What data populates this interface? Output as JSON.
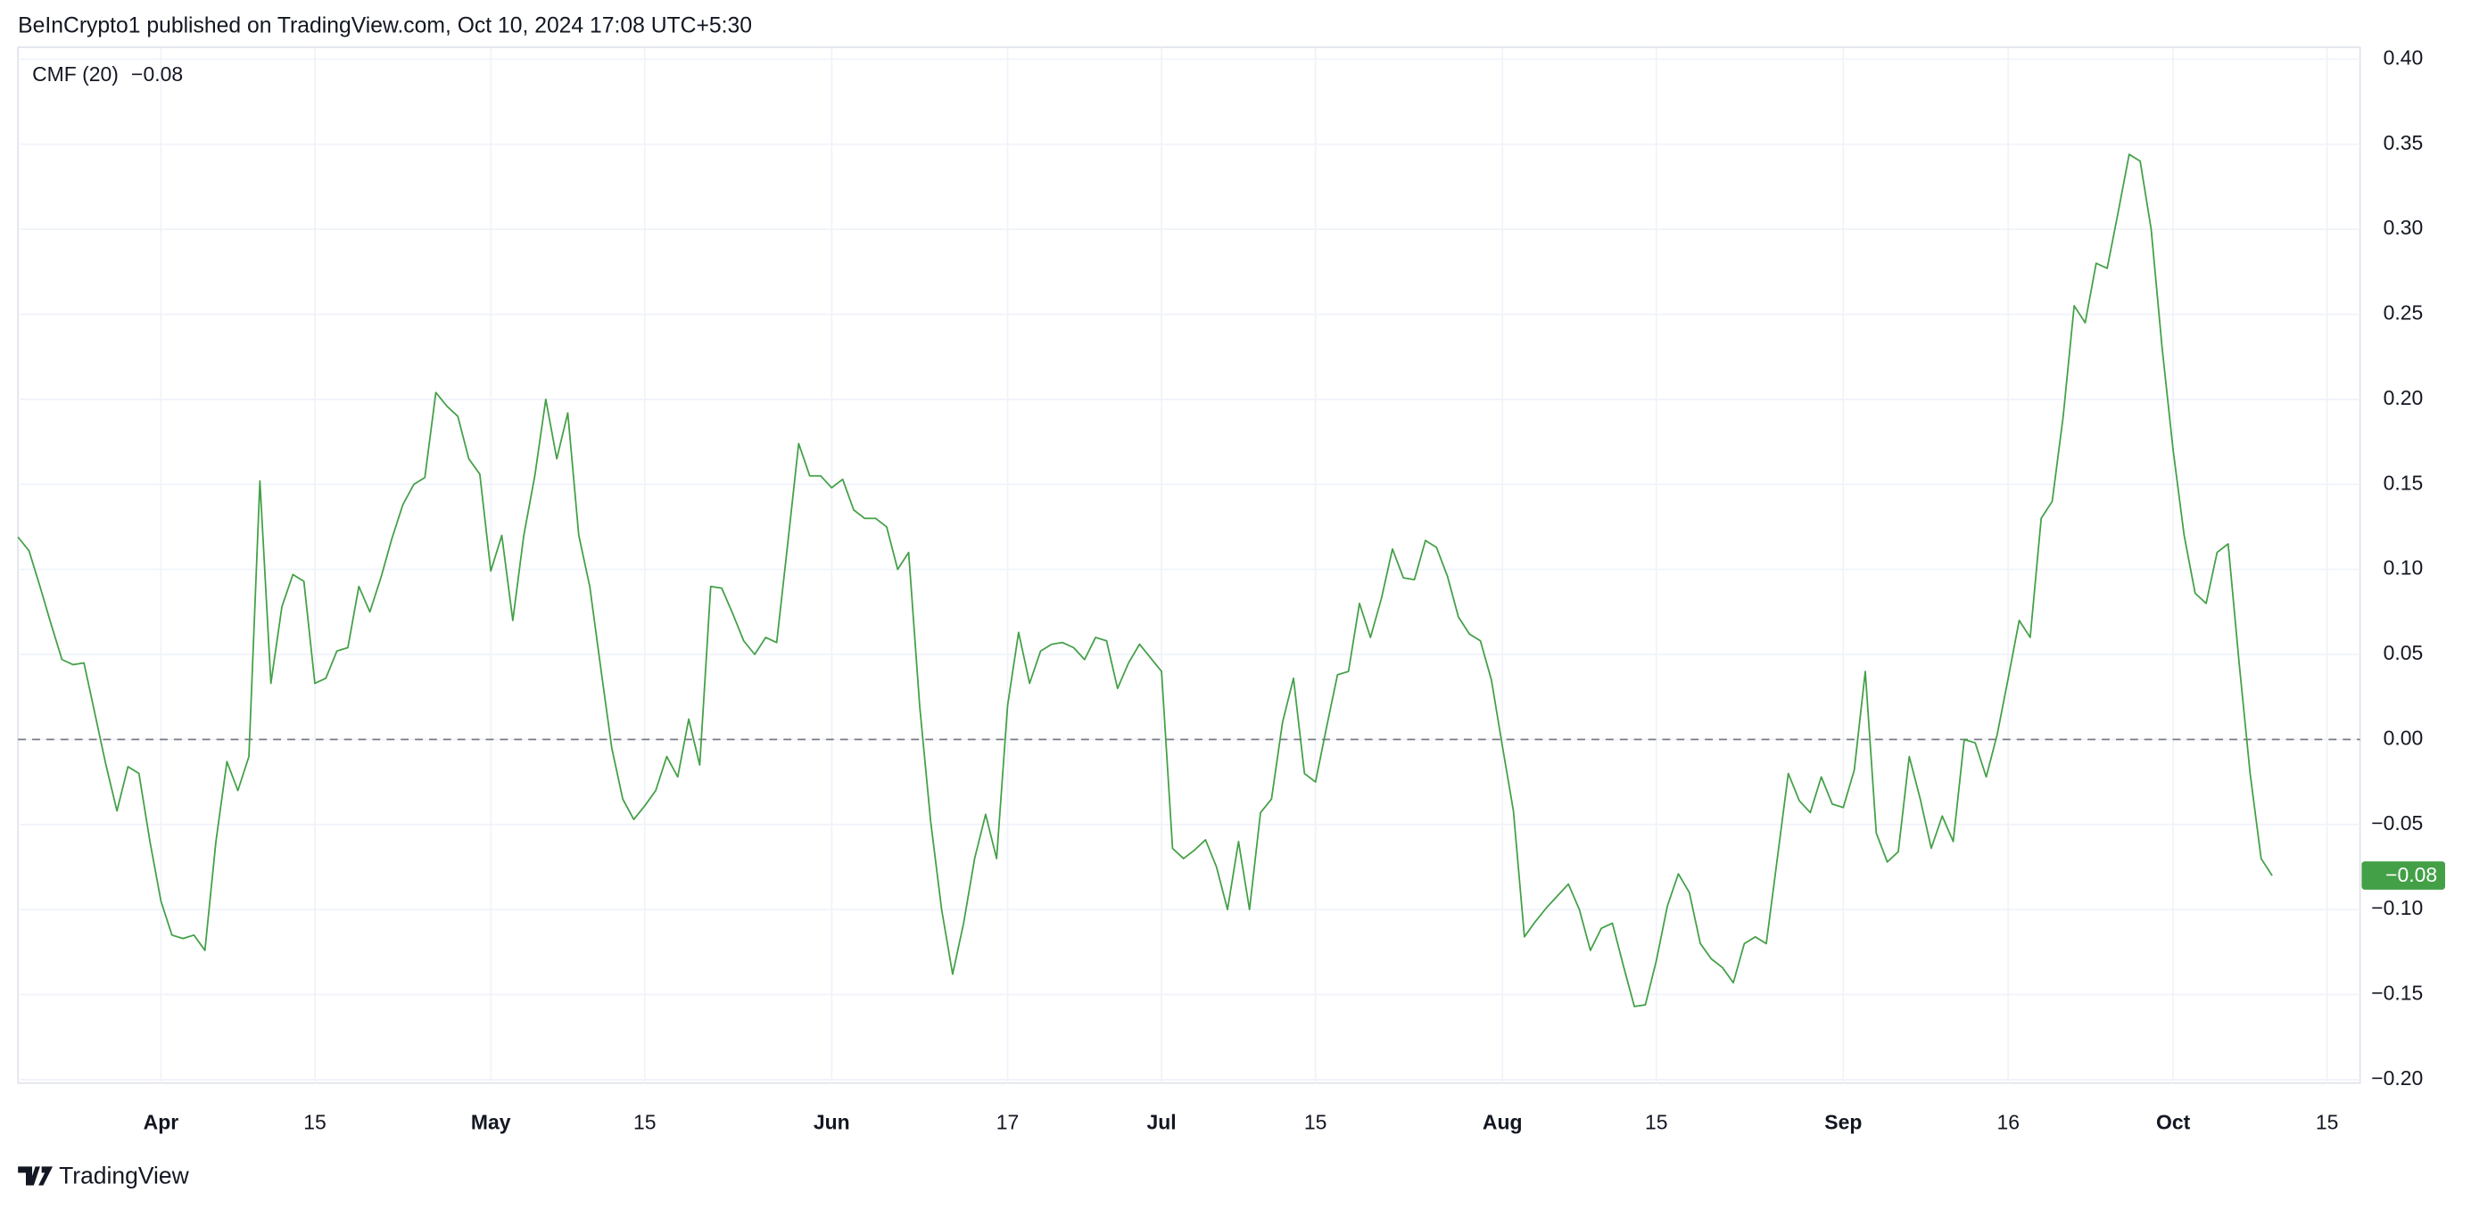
{
  "header": {
    "text": "BeInCrypto1 published on TradingView.com, Oct 10, 2024 17:08 UTC+5:30"
  },
  "footer": {
    "brand": "TradingView"
  },
  "chart_data": {
    "type": "line",
    "x": [
      "03-19",
      "03-20",
      "03-21",
      "03-22",
      "03-23",
      "03-24",
      "03-25",
      "03-26",
      "03-27",
      "03-28",
      "03-29",
      "03-30",
      "03-31",
      "04-01",
      "04-02",
      "04-03",
      "04-04",
      "04-05",
      "04-06",
      "04-07",
      "04-08",
      "04-09",
      "04-10",
      "04-11",
      "04-12",
      "04-13",
      "04-14",
      "04-15",
      "04-16",
      "04-17",
      "04-18",
      "04-19",
      "04-20",
      "04-21",
      "04-22",
      "04-23",
      "04-24",
      "04-25",
      "04-26",
      "04-27",
      "04-28",
      "04-29",
      "04-30",
      "05-01",
      "05-02",
      "05-03",
      "05-04",
      "05-05",
      "05-06",
      "05-07",
      "05-08",
      "05-09",
      "05-10",
      "05-11",
      "05-12",
      "05-13",
      "05-14",
      "05-15",
      "05-16",
      "05-17",
      "05-18",
      "05-19",
      "05-20",
      "05-21",
      "05-22",
      "05-23",
      "05-24",
      "05-25",
      "05-26",
      "05-27",
      "05-28",
      "05-29",
      "05-30",
      "05-31",
      "06-01",
      "06-02",
      "06-03",
      "06-04",
      "06-05",
      "06-06",
      "06-07",
      "06-08",
      "06-09",
      "06-10",
      "06-11",
      "06-12",
      "06-13",
      "06-14",
      "06-15",
      "06-16",
      "06-17",
      "06-18",
      "06-19",
      "06-20",
      "06-21",
      "06-22",
      "06-23",
      "06-24",
      "06-25",
      "06-26",
      "06-27",
      "06-28",
      "06-29",
      "06-30",
      "07-01",
      "07-02",
      "07-03",
      "07-04",
      "07-05",
      "07-06",
      "07-07",
      "07-08",
      "07-09",
      "07-10",
      "07-11",
      "07-12",
      "07-13",
      "07-14",
      "07-15",
      "07-16",
      "07-17",
      "07-18",
      "07-19",
      "07-20",
      "07-21",
      "07-22",
      "07-23",
      "07-24",
      "07-25",
      "07-26",
      "07-27",
      "07-28",
      "07-29",
      "07-30",
      "07-31",
      "08-01",
      "08-02",
      "08-03",
      "08-04",
      "08-05",
      "08-06",
      "08-07",
      "08-08",
      "08-09",
      "08-10",
      "08-11",
      "08-12",
      "08-13",
      "08-14",
      "08-15",
      "08-16",
      "08-17",
      "08-18",
      "08-19",
      "08-20",
      "08-21",
      "08-22",
      "08-23",
      "08-24",
      "08-25",
      "08-26",
      "08-27",
      "08-28",
      "08-29",
      "08-30",
      "08-31",
      "09-01",
      "09-02",
      "09-03",
      "09-04",
      "09-05",
      "09-06",
      "09-07",
      "09-08",
      "09-09",
      "09-10",
      "09-11",
      "09-12",
      "09-13",
      "09-14",
      "09-15",
      "09-16",
      "09-17",
      "09-18",
      "09-19",
      "09-20",
      "09-21",
      "09-22",
      "09-23",
      "09-24",
      "09-25",
      "09-26",
      "09-27",
      "09-28",
      "09-29",
      "09-30",
      "10-01",
      "10-02",
      "10-03",
      "10-04",
      "10-05",
      "10-06",
      "10-07",
      "10-08",
      "10-09",
      "10-10"
    ],
    "series": [
      {
        "name": "CMF (20)",
        "color": "#43a047",
        "last_value_label": "−0.08",
        "values": [
          0.119,
          0.111,
          0.09,
          0.068,
          0.047,
          0.044,
          0.045,
          0.015,
          -0.015,
          -0.042,
          -0.016,
          -0.02,
          -0.06,
          -0.095,
          -0.115,
          -0.117,
          -0.115,
          -0.124,
          -0.06,
          -0.013,
          -0.03,
          -0.01,
          0.152,
          0.033,
          0.078,
          0.097,
          0.093,
          0.033,
          0.036,
          0.052,
          0.054,
          0.09,
          0.075,
          0.095,
          0.118,
          0.138,
          0.15,
          0.154,
          0.204,
          0.196,
          0.19,
          0.165,
          0.156,
          0.099,
          0.12,
          0.07,
          0.12,
          0.155,
          0.2,
          0.165,
          0.192,
          0.12,
          0.09,
          0.042,
          -0.005,
          -0.035,
          -0.047,
          -0.039,
          -0.03,
          -0.01,
          -0.022,
          0.012,
          -0.015,
          0.09,
          0.089,
          0.074,
          0.058,
          0.05,
          0.06,
          0.057,
          0.115,
          0.174,
          0.155,
          0.155,
          0.148,
          0.153,
          0.135,
          0.13,
          0.13,
          0.125,
          0.1,
          0.11,
          0.02,
          -0.048,
          -0.1,
          -0.138,
          -0.108,
          -0.07,
          -0.044,
          -0.07,
          0.02,
          0.063,
          0.033,
          0.052,
          0.056,
          0.057,
          0.054,
          0.047,
          0.06,
          0.058,
          0.03,
          0.045,
          0.056,
          0.048,
          0.04,
          -0.064,
          -0.07,
          -0.065,
          -0.059,
          -0.075,
          -0.1,
          -0.06,
          -0.1,
          -0.043,
          -0.035,
          0.01,
          0.036,
          -0.02,
          -0.025,
          0.007,
          0.038,
          0.04,
          0.08,
          0.06,
          0.083,
          0.112,
          0.095,
          0.094,
          0.117,
          0.113,
          0.096,
          0.072,
          0.062,
          0.058,
          0.035,
          -0.004,
          -0.042,
          -0.116,
          -0.107,
          -0.099,
          -0.092,
          -0.085,
          -0.1,
          -0.124,
          -0.111,
          -0.108,
          -0.133,
          -0.157,
          -0.156,
          -0.13,
          -0.098,
          -0.079,
          -0.09,
          -0.12,
          -0.129,
          -0.134,
          -0.143,
          -0.12,
          -0.116,
          -0.12,
          -0.07,
          -0.02,
          -0.036,
          -0.043,
          -0.022,
          -0.038,
          -0.04,
          -0.018,
          0.04,
          -0.055,
          -0.072,
          -0.066,
          -0.01,
          -0.035,
          -0.064,
          -0.045,
          -0.06,
          0,
          -0.002,
          -0.022,
          0.003,
          0.036,
          0.07,
          0.06,
          0.13,
          0.14,
          0.19,
          0.255,
          0.245,
          0.28,
          0.277,
          0.31,
          0.344,
          0.34,
          0.3,
          0.23,
          0.17,
          0.12,
          0.086,
          0.08,
          0.11,
          0.115,
          0.045,
          -0.02,
          -0.07,
          -0.08
        ]
      }
    ],
    "xlim": [
      "03-19",
      "10-18"
    ],
    "xticks": [
      {
        "value": "04-01",
        "label": "Apr"
      },
      {
        "value": "04-15",
        "label": "15"
      },
      {
        "value": "05-01",
        "label": "May"
      },
      {
        "value": "05-15",
        "label": "15"
      },
      {
        "value": "06-01",
        "label": "Jun"
      },
      {
        "value": "06-17",
        "label": "17"
      },
      {
        "value": "07-01",
        "label": "Jul"
      },
      {
        "value": "07-15",
        "label": "15"
      },
      {
        "value": "08-01",
        "label": "Aug"
      },
      {
        "value": "08-15",
        "label": "15"
      },
      {
        "value": "09-01",
        "label": "Sep"
      },
      {
        "value": "09-16",
        "label": "16"
      },
      {
        "value": "10-01",
        "label": "Oct"
      },
      {
        "value": "10-15",
        "label": "15"
      }
    ],
    "ylim": [
      -0.202,
      0.407
    ],
    "yticks": [
      {
        "value": 0.4,
        "label": "0.40"
      },
      {
        "value": 0.35,
        "label": "0.35"
      },
      {
        "value": 0.3,
        "label": "0.30"
      },
      {
        "value": 0.25,
        "label": "0.25"
      },
      {
        "value": 0.2,
        "label": "0.20"
      },
      {
        "value": 0.15,
        "label": "0.15"
      },
      {
        "value": 0.1,
        "label": "0.10"
      },
      {
        "value": 0.05,
        "label": "0.05"
      },
      {
        "value": 0,
        "label": "0.00"
      },
      {
        "value": -0.05,
        "label": "−0.05"
      },
      {
        "value": -0.1,
        "label": "−0.10"
      },
      {
        "value": -0.15,
        "label": "−0.15"
      },
      {
        "value": -0.2,
        "label": "−0.20"
      }
    ],
    "grid": true,
    "zero_line": true
  }
}
